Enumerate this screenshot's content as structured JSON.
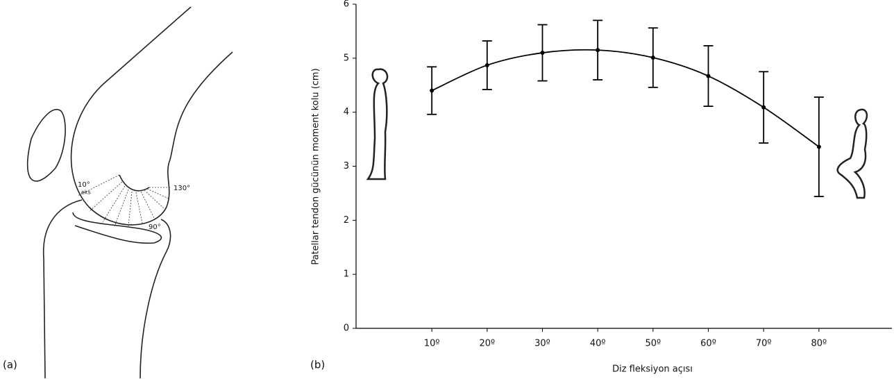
{
  "panel_labels": [
    "(a)",
    "(b)"
  ],
  "diagram": {
    "labels": [
      "10°",
      "eks",
      "130°",
      "90°"
    ]
  },
  "chart_data": {
    "type": "errorbar-line",
    "xlabel": "Diz fleksiyon açısı",
    "ylabel": "Patellar tendon gücünün moment kolu (cm)",
    "x": [
      10,
      20,
      30,
      40,
      50,
      60,
      70,
      80
    ],
    "values": [
      4.4,
      4.87,
      5.1,
      5.15,
      5.01,
      4.67,
      4.09,
      3.36
    ],
    "errors": [
      0.44,
      0.45,
      0.52,
      0.55,
      0.55,
      0.56,
      0.66,
      0.92
    ],
    "color": "#000000",
    "xlim": [
      -3.7,
      93.2
    ],
    "ylim": [
      0,
      6
    ],
    "xticks": [
      {
        "value": 10,
        "label": "10º"
      },
      {
        "value": 20,
        "label": "20º"
      },
      {
        "value": 30,
        "label": "30º"
      },
      {
        "value": 40,
        "label": "40º"
      },
      {
        "value": 50,
        "label": "50º"
      },
      {
        "value": 60,
        "label": "60º"
      },
      {
        "value": 70,
        "label": "70º"
      },
      {
        "value": 80,
        "label": "80º"
      }
    ],
    "yticks": [
      0,
      1,
      2,
      3,
      4,
      5,
      6
    ]
  }
}
